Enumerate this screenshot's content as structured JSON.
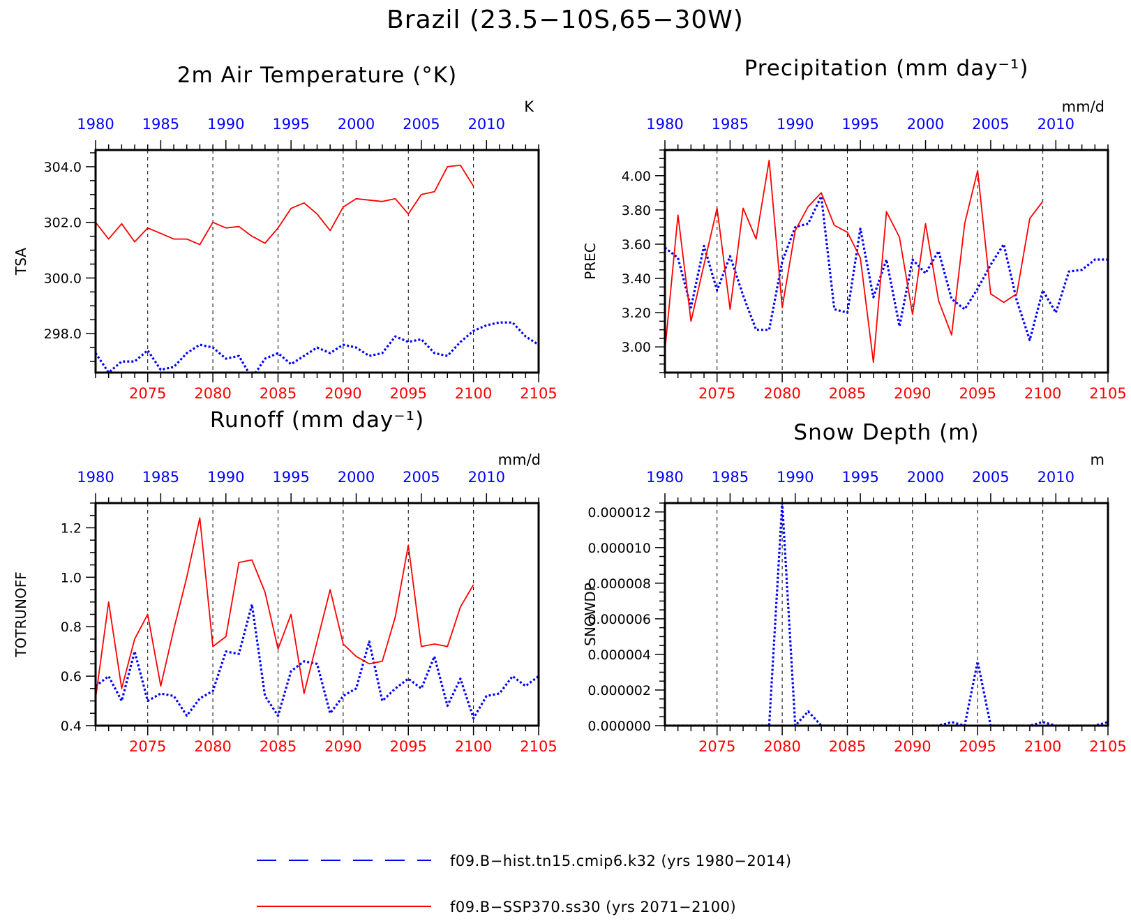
{
  "figure_title": "Brazil (23.5−10S,65−30W)",
  "colors": {
    "hist": "#0000ff",
    "ssp": "#ff0000"
  },
  "legend": [
    {
      "label": "f09.B−hist.tn15.cmip6.k32 (yrs 1980−2014)",
      "color": "#0000ff",
      "style": "dashed"
    },
    {
      "label": "f09.B−SSP370.ss30 (yrs 2071−2100)",
      "color": "#ff0000",
      "style": "solid"
    }
  ],
  "chart_data": [
    {
      "type": "line",
      "title": "2m Air Temperature (°K)",
      "units": "K",
      "ylabel": "TSA",
      "ylim": [
        296.6,
        304.6
      ],
      "yticks": [
        "298.0",
        "300.0",
        "302.0",
        "304.0"
      ],
      "top_axis": {
        "range": [
          1980,
          2014
        ],
        "ticks": [
          "1980",
          "1985",
          "1990",
          "1995",
          "2000",
          "2005",
          "2010"
        ]
      },
      "bottom_axis": {
        "range": [
          2071,
          2105
        ],
        "ticks": [
          "2075",
          "2080",
          "2085",
          "2090",
          "2095",
          "2100",
          "2105"
        ]
      },
      "series": [
        {
          "name": "f09.B−hist.tn15.cmip6.k32 (yrs 1980−2014)",
          "color": "#0000ff",
          "style": "dotted",
          "x": [
            1980,
            1981,
            1982,
            1983,
            1984,
            1985,
            1986,
            1987,
            1988,
            1989,
            1990,
            1991,
            1992,
            1993,
            1994,
            1995,
            1996,
            1997,
            1998,
            1999,
            2000,
            2001,
            2002,
            2003,
            2004,
            2005,
            2006,
            2007,
            2008,
            2009,
            2010,
            2011,
            2012,
            2013,
            2014
          ],
          "y": [
            297.3,
            296.6,
            297.0,
            297.0,
            297.4,
            296.7,
            296.8,
            297.3,
            297.6,
            297.5,
            297.1,
            297.2,
            296.4,
            297.1,
            297.3,
            296.9,
            297.2,
            297.5,
            297.3,
            297.6,
            297.5,
            297.2,
            297.3,
            297.9,
            297.7,
            297.8,
            297.3,
            297.2,
            297.7,
            298.1,
            298.3,
            298.4,
            298.4,
            297.9,
            297.6
          ]
        },
        {
          "name": "f09.B−SSP370.ss30 (yrs 2071−2100)",
          "color": "#ff0000",
          "style": "solid",
          "x": [
            2071,
            2072,
            2073,
            2074,
            2075,
            2076,
            2077,
            2078,
            2079,
            2080,
            2081,
            2082,
            2083,
            2084,
            2085,
            2086,
            2087,
            2088,
            2089,
            2090,
            2091,
            2092,
            2093,
            2094,
            2095,
            2096,
            2097,
            2098,
            2099,
            2100
          ],
          "y": [
            302.0,
            301.4,
            301.95,
            301.3,
            301.8,
            301.6,
            301.4,
            301.4,
            301.2,
            302.0,
            301.8,
            301.85,
            301.5,
            301.25,
            301.8,
            302.5,
            302.7,
            302.3,
            301.7,
            302.55,
            302.85,
            302.8,
            302.75,
            302.85,
            302.3,
            303.0,
            303.1,
            304.0,
            304.05,
            303.3
          ]
        }
      ]
    },
    {
      "type": "line",
      "title": "Precipitation (mm day⁻¹)",
      "units": "mm/d",
      "ylabel": "PREC",
      "ylim": [
        2.85,
        4.15
      ],
      "yticks": [
        "3.00",
        "3.20",
        "3.40",
        "3.60",
        "3.80",
        "4.00"
      ],
      "top_axis": {
        "range": [
          1980,
          2014
        ],
        "ticks": [
          "1980",
          "1985",
          "1990",
          "1995",
          "2000",
          "2005",
          "2010"
        ]
      },
      "bottom_axis": {
        "range": [
          2071,
          2105
        ],
        "ticks": [
          "2075",
          "2080",
          "2085",
          "2090",
          "2095",
          "2100",
          "2105"
        ]
      },
      "series": [
        {
          "name": "f09.B−hist.tn15.cmip6.k32 (yrs 1980−2014)",
          "color": "#0000ff",
          "style": "dotted",
          "x": [
            1980,
            1981,
            1982,
            1983,
            1984,
            1985,
            1986,
            1987,
            1988,
            1989,
            1990,
            1991,
            1992,
            1993,
            1994,
            1995,
            1996,
            1997,
            1998,
            1999,
            2000,
            2001,
            2002,
            2003,
            2004,
            2005,
            2006,
            2007,
            2008,
            2009,
            2010,
            2011,
            2012,
            2013,
            2014
          ],
          "y": [
            3.58,
            3.52,
            3.23,
            3.59,
            3.33,
            3.53,
            3.3,
            3.1,
            3.1,
            3.5,
            3.7,
            3.72,
            3.88,
            3.22,
            3.2,
            3.69,
            3.29,
            3.51,
            3.12,
            3.51,
            3.43,
            3.56,
            3.28,
            3.22,
            3.34,
            3.48,
            3.6,
            3.27,
            3.04,
            3.33,
            3.2,
            3.44,
            3.45,
            3.51,
            3.51
          ]
        },
        {
          "name": "f09.B−SSP370.ss30 (yrs 2071−2100)",
          "color": "#ff0000",
          "style": "solid",
          "x": [
            2071,
            2072,
            2073,
            2074,
            2075,
            2076,
            2077,
            2078,
            2079,
            2080,
            2081,
            2082,
            2083,
            2084,
            2085,
            2086,
            2087,
            2088,
            2089,
            2090,
            2091,
            2092,
            2093,
            2094,
            2095,
            2096,
            2097,
            2098,
            2099,
            2100
          ],
          "y": [
            2.98,
            3.77,
            3.15,
            3.48,
            3.81,
            3.22,
            3.81,
            3.63,
            4.09,
            3.23,
            3.68,
            3.82,
            3.9,
            3.71,
            3.67,
            3.52,
            2.91,
            3.79,
            3.64,
            3.19,
            3.72,
            3.27,
            3.07,
            3.72,
            4.03,
            3.31,
            3.26,
            3.31,
            3.75,
            3.85
          ]
        }
      ]
    },
    {
      "type": "line",
      "title": "Runoff (mm day⁻¹)",
      "units": "mm/d",
      "ylabel": "TOTRUNOFF",
      "ylim": [
        0.4,
        1.3
      ],
      "yticks": [
        "0.4",
        "0.6",
        "0.8",
        "1.0",
        "1.2"
      ],
      "top_axis": {
        "range": [
          1980,
          2014
        ],
        "ticks": [
          "1980",
          "1985",
          "1990",
          "1995",
          "2000",
          "2005",
          "2010"
        ]
      },
      "bottom_axis": {
        "range": [
          2071,
          2105
        ],
        "ticks": [
          "2075",
          "2080",
          "2085",
          "2090",
          "2095",
          "2100",
          "2105"
        ]
      },
      "series": [
        {
          "name": "f09.B−hist.tn15.cmip6.k32 (yrs 1980−2014)",
          "color": "#0000ff",
          "style": "dotted",
          "x": [
            1980,
            1981,
            1982,
            1983,
            1984,
            1985,
            1986,
            1987,
            1988,
            1989,
            1990,
            1991,
            1992,
            1993,
            1994,
            1995,
            1996,
            1997,
            1998,
            1999,
            2000,
            2001,
            2002,
            2003,
            2004,
            2005,
            2006,
            2007,
            2008,
            2009,
            2010,
            2011,
            2012,
            2013,
            2014
          ],
          "y": [
            0.56,
            0.6,
            0.5,
            0.7,
            0.5,
            0.53,
            0.52,
            0.44,
            0.51,
            0.54,
            0.7,
            0.69,
            0.89,
            0.52,
            0.44,
            0.62,
            0.66,
            0.65,
            0.45,
            0.52,
            0.55,
            0.74,
            0.5,
            0.55,
            0.59,
            0.55,
            0.68,
            0.48,
            0.59,
            0.43,
            0.52,
            0.53,
            0.6,
            0.56,
            0.6
          ]
        },
        {
          "name": "f09.B−SSP370.ss30 (yrs 2071−2100)",
          "color": "#ff0000",
          "style": "solid",
          "x": [
            2071,
            2072,
            2073,
            2074,
            2075,
            2076,
            2077,
            2078,
            2079,
            2080,
            2081,
            2082,
            2083,
            2084,
            2085,
            2086,
            2087,
            2088,
            2089,
            2090,
            2091,
            2092,
            2093,
            2094,
            2095,
            2096,
            2097,
            2098,
            2099,
            2100
          ],
          "y": [
            0.51,
            0.9,
            0.55,
            0.75,
            0.85,
            0.56,
            0.79,
            1.0,
            1.24,
            0.72,
            0.76,
            1.06,
            1.07,
            0.94,
            0.71,
            0.85,
            0.53,
            0.74,
            0.95,
            0.73,
            0.68,
            0.65,
            0.66,
            0.84,
            1.13,
            0.72,
            0.73,
            0.72,
            0.88,
            0.97
          ]
        }
      ]
    },
    {
      "type": "line",
      "title": "Snow Depth (m)",
      "units": "m",
      "ylabel": "SNOWDP",
      "ylim": [
        0,
        1.25e-05
      ],
      "yticks": [
        "0.000000",
        "0.000002",
        "0.000004",
        "0.000006",
        "0.000008",
        "0.000010",
        "0.000012"
      ],
      "top_axis": {
        "range": [
          1980,
          2014
        ],
        "ticks": [
          "1980",
          "1985",
          "1990",
          "1995",
          "2000",
          "2005",
          "2010"
        ]
      },
      "bottom_axis": {
        "range": [
          2071,
          2105
        ],
        "ticks": [
          "2075",
          "2080",
          "2085",
          "2090",
          "2095",
          "2100",
          "2105"
        ]
      },
      "series": [
        {
          "name": "f09.B−hist.tn15.cmip6.k32 (yrs 1980−2014)",
          "color": "#0000ff",
          "style": "dotted",
          "x": [
            1980,
            1981,
            1982,
            1983,
            1984,
            1985,
            1986,
            1987,
            1988,
            1989,
            1990,
            1991,
            1992,
            1993,
            1994,
            1995,
            1996,
            1997,
            1998,
            1999,
            2000,
            2001,
            2002,
            2003,
            2004,
            2005,
            2006,
            2007,
            2008,
            2009,
            2010,
            2011,
            2012,
            2013,
            2014
          ],
          "y": [
            0,
            0,
            0,
            0,
            0,
            0,
            0,
            0,
            0,
            1.25e-05,
            0,
            8e-07,
            0,
            0,
            0,
            0,
            0,
            0,
            0,
            0,
            0,
            0,
            2e-07,
            0,
            3.6e-06,
            0,
            0,
            0,
            0,
            2e-07,
            0,
            0,
            0,
            0,
            2e-07
          ]
        },
        {
          "name": "f09.B−SSP370.ss30 (yrs 2071−2100)",
          "color": "#ff0000",
          "style": "solid",
          "x": [
            2071,
            2072,
            2073,
            2074,
            2075,
            2076,
            2077,
            2078,
            2079,
            2080,
            2081,
            2082,
            2083,
            2084,
            2085,
            2086,
            2087,
            2088,
            2089,
            2090,
            2091,
            2092,
            2093,
            2094,
            2095,
            2096,
            2097,
            2098,
            2099,
            2100
          ],
          "y": [
            0,
            0,
            0,
            0,
            0,
            0,
            0,
            0,
            0,
            0,
            0,
            0,
            0,
            0,
            0,
            0,
            0,
            0,
            0,
            0,
            0,
            0,
            0,
            0,
            0,
            0,
            0,
            0,
            0,
            0
          ]
        }
      ]
    }
  ]
}
